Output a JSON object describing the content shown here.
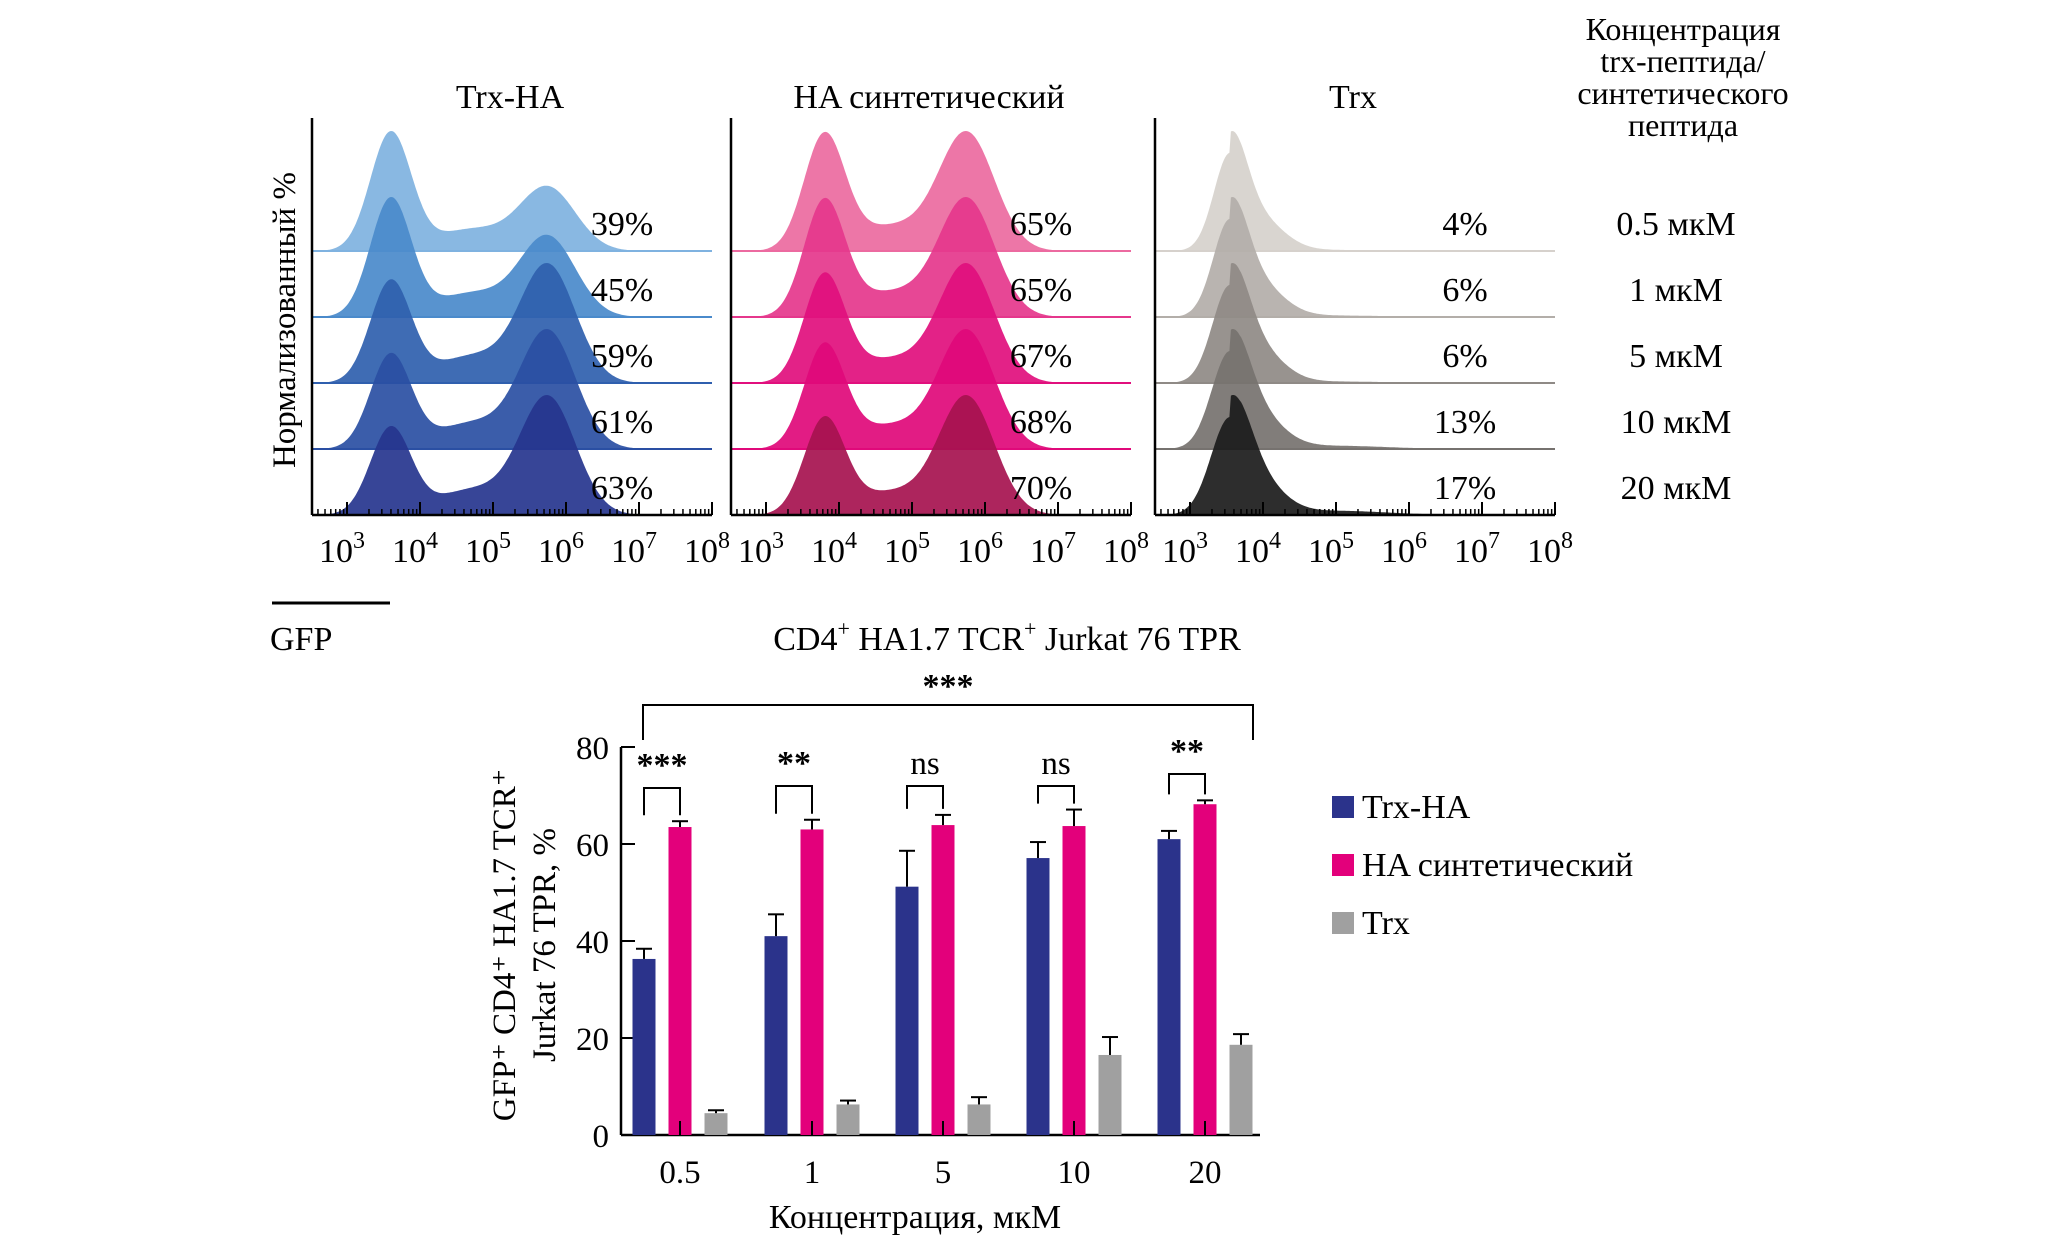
{
  "figure": {
    "histograms": {
      "ylabel": "Нормализованный %",
      "xlabel": "GFP",
      "xticks": [
        {
          "base": "10",
          "exp": "3"
        },
        {
          "base": "10",
          "exp": "4"
        },
        {
          "base": "10",
          "exp": "5"
        },
        {
          "base": "10",
          "exp": "6"
        },
        {
          "base": "10",
          "exp": "7"
        },
        {
          "base": "10",
          "exp": "8"
        }
      ],
      "concentration_header": [
        "Концентрация",
        "trx-пептида/",
        "синтетического",
        "пептида"
      ],
      "concentrations": [
        "0.5 мкМ",
        "1 мкМ",
        "5 мкМ",
        "10 мкМ",
        "20 мкМ"
      ],
      "panels": [
        {
          "title": "Trx-HA",
          "percents": [
            "39%",
            "45%",
            "59%",
            "61%",
            "63%"
          ],
          "colors": [
            "#7fb2e0",
            "#4a8acb",
            "#2f5fae",
            "#2a4fa3",
            "#26358e"
          ]
        },
        {
          "title": "HA синтетический",
          "percents": [
            "65%",
            "65%",
            "67%",
            "68%",
            "70%"
          ],
          "colors": [
            "#ec6aa0",
            "#e5378c",
            "#e10f7d",
            "#e0097a",
            "#a6124f"
          ]
        },
        {
          "title": "Trx",
          "percents": [
            "4%",
            "6%",
            "6%",
            "13%",
            "17%"
          ],
          "colors": [
            "#d6d1cc",
            "#b3aea9",
            "#8f8a86",
            "#76726f",
            "#1b1b1b"
          ]
        }
      ]
    },
    "bar_chart_title": {
      "main": "CD4",
      "sup1": "+",
      "mid": " HA1.7  TCR",
      "sup2": "+",
      "tail": " Jurkat 76 TPR"
    },
    "bar_ylabel_line1": "GFP⁺ CD4⁺ HA1.7 TCR⁺",
    "bar_ylabel_line2": "Jurkat 76 TPR, %"
  },
  "chart_data": [
    {
      "type": "area",
      "title": "Flow cytometry GFP histograms (normalized %)",
      "xlabel": "GFP",
      "ylabel": "Нормализованный %",
      "xscale": "log10",
      "xlim": [
        1000,
        100000000
      ],
      "panels": [
        "Trx-HA",
        "HA синтетический",
        "Trx"
      ],
      "rows": [
        "0.5 мкМ",
        "1 мкМ",
        "5 мкМ",
        "10 мкМ",
        "20 мкМ"
      ],
      "gfp_positive_percent": {
        "Trx-HA": [
          39,
          45,
          59,
          61,
          63
        ],
        "HA синтетический": [
          65,
          65,
          67,
          68,
          70
        ],
        "Trx": [
          4,
          6,
          6,
          13,
          17
        ]
      }
    },
    {
      "type": "bar",
      "title": "CD4+ HA1.7 TCR+ Jurkat 76 TPR",
      "xlabel": "Концентрация, мкМ",
      "ylabel": "GFP+ CD4+ HA1.7 TCR+ Jurkat 76 TPR, %",
      "categories": [
        "0.5",
        "1",
        "5",
        "10",
        "20"
      ],
      "ylim": [
        0,
        80
      ],
      "yticks": [
        0,
        20,
        40,
        60,
        80
      ],
      "legend": "right",
      "series": [
        {
          "name": "Trx-HA",
          "color": "#2b338b",
          "values": [
            36.3,
            41,
            51.2,
            57.1,
            61
          ],
          "errors": [
            2.1,
            4.5,
            7.4,
            3.3,
            1.7
          ]
        },
        {
          "name": "HA синтетический",
          "color": "#e3007b",
          "values": [
            63.5,
            63,
            63.9,
            63.7,
            68.2
          ],
          "errors": [
            1.2,
            2,
            2.1,
            3.4,
            0.8
          ]
        },
        {
          "name": "Trx",
          "color": "#a0a0a0",
          "values": [
            4.5,
            6.3,
            6.3,
            16.5,
            18.6
          ],
          "errors": [
            0.6,
            0.8,
            1.5,
            3.7,
            2.2
          ]
        }
      ],
      "significance": {
        "pairwise": [
          "***",
          "**",
          "ns",
          "ns",
          "**"
        ],
        "overall": "***"
      }
    }
  ]
}
